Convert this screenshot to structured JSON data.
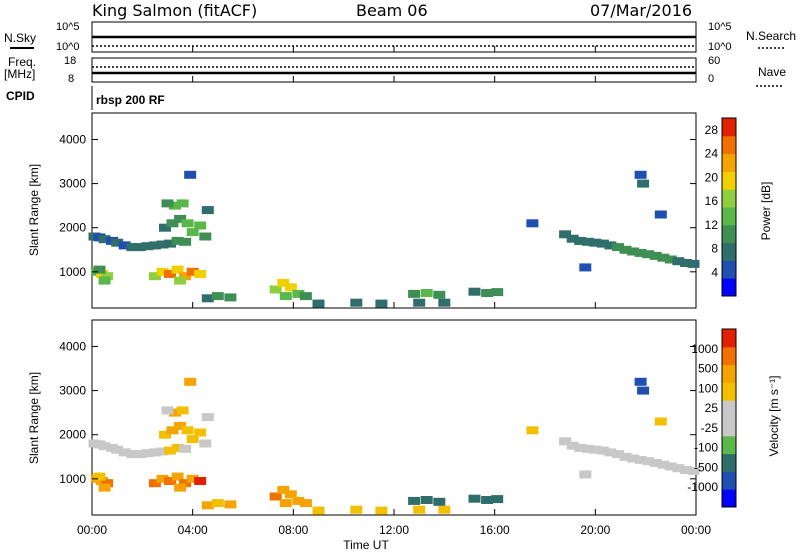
{
  "header": {
    "station": "King Salmon (fitACF)",
    "beam": "Beam 06",
    "date": "07/Mar/2016"
  },
  "top_panels": {
    "nsky_label": "N.Sky",
    "nsky_ticks": [
      "10^5",
      "10^0"
    ],
    "nsearch_label": "N.Search",
    "nsearch_ticks": [
      "10^5",
      "10^0"
    ],
    "freq_label_1": "Freq.",
    "freq_label_2": "[MHz]",
    "freq_ticks": [
      "18",
      "8"
    ],
    "nave_label": "Nave",
    "nave_ticks": [
      "60",
      "0"
    ],
    "cpid_label": "CPID",
    "cpid_value": "rbsp 200 RF"
  },
  "x_axis": {
    "label": "Time UT",
    "ticks": [
      "00:00",
      "04:00",
      "08:00",
      "12:00",
      "16:00",
      "20:00",
      "00:00"
    ]
  },
  "colors": {
    "power_scale": [
      "#0000ff",
      "#1f4fb0",
      "#2f6e6a",
      "#3f8f55",
      "#5ab84a",
      "#8fce3f",
      "#f2d000",
      "#f5a300",
      "#f07000",
      "#e02000"
    ],
    "velocity_scale": [
      "#0000ff",
      "#1f4fb0",
      "#2f6e6a",
      "#5ab84a",
      "#c8c8c8",
      "#c8c8c8",
      "#f2c000",
      "#f5a300",
      "#f07000",
      "#e02000"
    ]
  },
  "chart_data": [
    {
      "type": "heatmap",
      "title": "",
      "xlabel": "",
      "ylabel": "Slant Range [km]",
      "y_ticks": [
        "1000",
        "2000",
        "3000",
        "4000"
      ],
      "xlim_hours": [
        0,
        24
      ],
      "ylim_km": [
        180,
        4600
      ],
      "colorbar_label": "Power [dB]",
      "colorbar_ticks": [
        "4",
        "8",
        "12",
        "16",
        "20",
        "24",
        "28"
      ],
      "zlim": [
        0,
        30
      ],
      "cells_hour_km_value": [
        [
          0.1,
          1800,
          6
        ],
        [
          0.3,
          1780,
          5
        ],
        [
          0.5,
          1740,
          6
        ],
        [
          0.8,
          1700,
          5
        ],
        [
          1.0,
          1660,
          6
        ],
        [
          1.3,
          1600,
          5
        ],
        [
          1.6,
          1560,
          6
        ],
        [
          1.9,
          1560,
          7
        ],
        [
          2.2,
          1580,
          6
        ],
        [
          2.5,
          1600,
          8
        ],
        [
          2.8,
          1620,
          6
        ],
        [
          3.1,
          1640,
          7
        ],
        [
          3.4,
          1700,
          9
        ],
        [
          3.7,
          1680,
          10
        ],
        [
          2.9,
          2000,
          8
        ],
        [
          3.2,
          2100,
          9
        ],
        [
          3.5,
          2200,
          10
        ],
        [
          3.8,
          2100,
          12
        ],
        [
          3.3,
          2500,
          14
        ],
        [
          3.6,
          2550,
          12
        ],
        [
          3.0,
          2550,
          9
        ],
        [
          4.0,
          1900,
          12
        ],
        [
          4.3,
          2050,
          13
        ],
        [
          4.5,
          1800,
          10
        ],
        [
          4.6,
          2400,
          6
        ],
        [
          3.9,
          3200,
          5
        ],
        [
          0.2,
          1000,
          13
        ],
        [
          0.4,
          950,
          18
        ],
        [
          0.6,
          900,
          15
        ],
        [
          0.5,
          800,
          12
        ],
        [
          0.3,
          1050,
          10
        ],
        [
          2.5,
          900,
          16
        ],
        [
          2.8,
          1000,
          20
        ],
        [
          3.1,
          950,
          24
        ],
        [
          3.4,
          1050,
          18
        ],
        [
          3.7,
          900,
          22
        ],
        [
          4.0,
          1000,
          26
        ],
        [
          4.3,
          950,
          19
        ],
        [
          3.5,
          800,
          15
        ],
        [
          4.6,
          400,
          8
        ],
        [
          5.0,
          450,
          10
        ],
        [
          5.5,
          420,
          9
        ],
        [
          7.3,
          600,
          16
        ],
        [
          7.6,
          750,
          20
        ],
        [
          7.9,
          650,
          18
        ],
        [
          8.2,
          500,
          12
        ],
        [
          8.5,
          450,
          9
        ],
        [
          7.7,
          450,
          14
        ],
        [
          9.0,
          280,
          8
        ],
        [
          10.5,
          300,
          6
        ],
        [
          11.5,
          280,
          7
        ],
        [
          13.0,
          300,
          6
        ],
        [
          14.0,
          300,
          8
        ],
        [
          12.8,
          500,
          9
        ],
        [
          13.3,
          520,
          12
        ],
        [
          13.8,
          480,
          10
        ],
        [
          15.2,
          550,
          8
        ],
        [
          15.7,
          520,
          10
        ],
        [
          16.1,
          540,
          9
        ],
        [
          17.5,
          2100,
          5
        ],
        [
          18.8,
          1850,
          6
        ],
        [
          19.1,
          1750,
          6
        ],
        [
          19.4,
          1700,
          7
        ],
        [
          19.7,
          1680,
          6
        ],
        [
          20.0,
          1660,
          7
        ],
        [
          20.3,
          1640,
          8
        ],
        [
          20.6,
          1600,
          7
        ],
        [
          20.9,
          1560,
          9
        ],
        [
          21.2,
          1500,
          10
        ],
        [
          21.5,
          1460,
          9
        ],
        [
          21.8,
          1430,
          11
        ],
        [
          22.1,
          1400,
          10
        ],
        [
          22.4,
          1360,
          9
        ],
        [
          22.7,
          1320,
          10
        ],
        [
          23.0,
          1280,
          9
        ],
        [
          23.3,
          1240,
          8
        ],
        [
          23.6,
          1200,
          7
        ],
        [
          23.9,
          1180,
          6
        ],
        [
          21.8,
          3200,
          5
        ],
        [
          21.9,
          3000,
          6
        ],
        [
          19.6,
          1100,
          5
        ],
        [
          22.6,
          2300,
          5
        ]
      ]
    },
    {
      "type": "heatmap",
      "title": "",
      "xlabel": "Time UT",
      "ylabel": "Slant Range [km]",
      "y_ticks": [
        "1000",
        "2000",
        "3000",
        "4000"
      ],
      "xlim_hours": [
        0,
        24
      ],
      "ylim_km": [
        180,
        4600
      ],
      "colorbar_label": "Velocity [m s⁻¹]",
      "colorbar_ticks": [
        "1000",
        "500",
        "100",
        "25",
        "-25",
        "-100",
        "-500",
        "-1000"
      ],
      "cells_hour_km_value": [
        [
          0.1,
          1800,
          0
        ],
        [
          0.3,
          1780,
          10
        ],
        [
          0.5,
          1740,
          -10
        ],
        [
          0.8,
          1700,
          0
        ],
        [
          1.0,
          1660,
          15
        ],
        [
          1.3,
          1600,
          -5
        ],
        [
          1.6,
          1560,
          0
        ],
        [
          1.9,
          1560,
          -20
        ],
        [
          2.2,
          1580,
          5
        ],
        [
          2.5,
          1600,
          -15
        ],
        [
          2.8,
          1620,
          0
        ],
        [
          3.1,
          1640,
          -30
        ],
        [
          3.4,
          1700,
          -80
        ],
        [
          3.7,
          1680,
          0
        ],
        [
          2.9,
          2000,
          -60
        ],
        [
          3.2,
          2100,
          -120
        ],
        [
          3.5,
          2200,
          -150
        ],
        [
          3.8,
          2100,
          -90
        ],
        [
          3.3,
          2500,
          -200
        ],
        [
          3.6,
          2550,
          -60
        ],
        [
          3.0,
          2550,
          10
        ],
        [
          4.0,
          1900,
          -100
        ],
        [
          4.3,
          2050,
          -50
        ],
        [
          4.5,
          1800,
          0
        ],
        [
          4.6,
          2400,
          5
        ],
        [
          3.9,
          3200,
          -150
        ],
        [
          0.2,
          1000,
          -300
        ],
        [
          0.4,
          950,
          -150
        ],
        [
          0.6,
          900,
          -600
        ],
        [
          0.5,
          800,
          -200
        ],
        [
          0.3,
          1050,
          -80
        ],
        [
          2.5,
          900,
          -700
        ],
        [
          2.8,
          1000,
          -400
        ],
        [
          3.1,
          950,
          -800
        ],
        [
          3.4,
          1050,
          -300
        ],
        [
          3.7,
          900,
          -900
        ],
        [
          4.0,
          1000,
          -500
        ],
        [
          4.3,
          950,
          -1200
        ],
        [
          3.5,
          800,
          -250
        ],
        [
          4.6,
          400,
          -150
        ],
        [
          5.0,
          450,
          -80
        ],
        [
          5.5,
          420,
          -120
        ],
        [
          7.3,
          600,
          -600
        ],
        [
          7.6,
          750,
          -300
        ],
        [
          7.9,
          650,
          -400
        ],
        [
          8.2,
          500,
          -200
        ],
        [
          8.5,
          450,
          -120
        ],
        [
          7.7,
          450,
          -150
        ],
        [
          9.0,
          280,
          -100
        ],
        [
          10.5,
          300,
          -60
        ],
        [
          11.5,
          280,
          -90
        ],
        [
          13.0,
          300,
          -80
        ],
        [
          14.0,
          300,
          -70
        ],
        [
          12.8,
          500,
          200
        ],
        [
          13.3,
          520,
          150
        ],
        [
          13.8,
          480,
          120
        ],
        [
          15.2,
          550,
          180
        ],
        [
          15.7,
          520,
          140
        ],
        [
          16.1,
          540,
          110
        ],
        [
          17.5,
          2100,
          -30
        ],
        [
          18.8,
          1850,
          0
        ],
        [
          19.1,
          1750,
          10
        ],
        [
          19.4,
          1700,
          -10
        ],
        [
          19.7,
          1680,
          0
        ],
        [
          20.0,
          1660,
          5
        ],
        [
          20.3,
          1640,
          -5
        ],
        [
          20.6,
          1600,
          0
        ],
        [
          20.9,
          1560,
          15
        ],
        [
          21.2,
          1500,
          -10
        ],
        [
          21.5,
          1460,
          0
        ],
        [
          21.8,
          1430,
          20
        ],
        [
          22.1,
          1400,
          -15
        ],
        [
          22.4,
          1360,
          0
        ],
        [
          22.7,
          1320,
          10
        ],
        [
          23.0,
          1280,
          -5
        ],
        [
          23.3,
          1240,
          0
        ],
        [
          23.6,
          1200,
          5
        ],
        [
          23.9,
          1180,
          -10
        ],
        [
          21.8,
          3200,
          800
        ],
        [
          21.9,
          3000,
          600
        ],
        [
          19.6,
          1100,
          0
        ],
        [
          22.6,
          2300,
          -80
        ]
      ]
    }
  ]
}
